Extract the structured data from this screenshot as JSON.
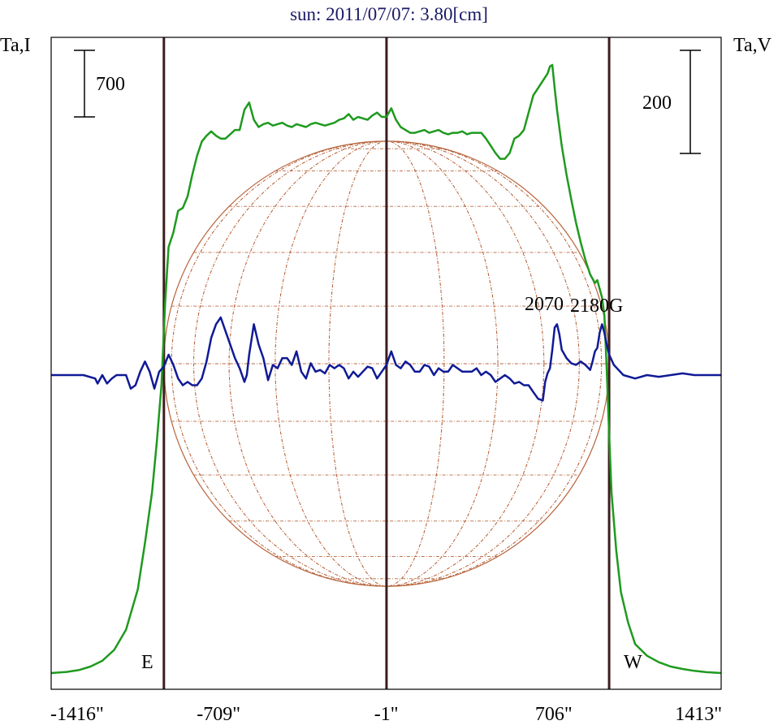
{
  "chart_data": {
    "type": "line",
    "title": "sun: 2011/07/07: 3.80[cm]",
    "left_axis_label": "Ta,I",
    "right_axis_label": "Ta,V",
    "left_scale_bar_label": "700",
    "right_scale_bar_label": "200",
    "x_ticks": [
      "-1416\"",
      "-709\"",
      "-1\"",
      "706\"",
      "1413\""
    ],
    "x_tick_values": [
      -1416,
      -709,
      -1,
      706,
      1413
    ],
    "xlim": [
      -1416,
      1413
    ],
    "limb_labels": {
      "east": "E",
      "west": "W"
    },
    "limb_positions": [
      -940,
      940
    ],
    "center_position": 0,
    "solar_radius": 940,
    "active_region_labels": [
      {
        "text": "2070",
        "x": 700
      },
      {
        "text": "2180G",
        "x": 930
      }
    ],
    "colors": {
      "intensity": "#1e9a1e",
      "polarization": "#101a96",
      "limb_lines": "#3b1d1d",
      "disk_grid": "#b8643c",
      "title": "#1a1a66",
      "frame": "#000000"
    },
    "series": [
      {
        "name": "Ta,I",
        "x": [
          -1416,
          -1350,
          -1300,
          -1250,
          -1200,
          -1150,
          -1100,
          -1050,
          -1020,
          -990,
          -970,
          -950,
          -935,
          -920,
          -900,
          -880,
          -860,
          -840,
          -820,
          -800,
          -780,
          -760,
          -740,
          -720,
          -700,
          -680,
          -660,
          -640,
          -620,
          -600,
          -580,
          -560,
          -540,
          -520,
          -500,
          -480,
          -460,
          -440,
          -420,
          -400,
          -380,
          -360,
          -340,
          -320,
          -300,
          -280,
          -260,
          -240,
          -220,
          -200,
          -180,
          -160,
          -140,
          -120,
          -100,
          -80,
          -60,
          -40,
          -20,
          0,
          20,
          40,
          60,
          80,
          100,
          120,
          140,
          160,
          180,
          200,
          220,
          240,
          260,
          280,
          300,
          320,
          340,
          360,
          380,
          400,
          420,
          440,
          460,
          480,
          500,
          520,
          540,
          560,
          580,
          600,
          620,
          640,
          660,
          680,
          690,
          700,
          710,
          720,
          740,
          760,
          780,
          800,
          820,
          840,
          860,
          880,
          890,
          900,
          910,
          920,
          930,
          940,
          950,
          970,
          990,
          1020,
          1050,
          1100,
          1150,
          1200,
          1250,
          1300,
          1350,
          1413
        ],
        "values": [
          0,
          8,
          20,
          45,
          85,
          160,
          300,
          580,
          900,
          1250,
          1600,
          2000,
          2560,
          2950,
          3050,
          3200,
          3220,
          3300,
          3450,
          3580,
          3680,
          3720,
          3750,
          3720,
          3700,
          3700,
          3730,
          3760,
          3760,
          3900,
          3950,
          3830,
          3780,
          3800,
          3810,
          3790,
          3800,
          3810,
          3790,
          3780,
          3800,
          3790,
          3780,
          3800,
          3810,
          3800,
          3790,
          3800,
          3810,
          3830,
          3840,
          3870,
          3830,
          3850,
          3840,
          3830,
          3860,
          3880,
          3850,
          3850,
          3910,
          3830,
          3780,
          3760,
          3740,
          3740,
          3750,
          3760,
          3740,
          3750,
          3760,
          3740,
          3730,
          3740,
          3740,
          3750,
          3730,
          3740,
          3740,
          3740,
          3700,
          3650,
          3600,
          3560,
          3560,
          3600,
          3700,
          3720,
          3760,
          3880,
          4000,
          4050,
          4100,
          4150,
          4200,
          4210,
          4050,
          3900,
          3650,
          3450,
          3280,
          3120,
          2980,
          2860,
          2760,
          2700,
          2720,
          2660,
          2600,
          2480,
          2100,
          1650,
          1250,
          850,
          560,
          350,
          200,
          120,
          75,
          45,
          28,
          15,
          6,
          0
        ]
      },
      {
        "name": "Ta,V",
        "x": [
          -1416,
          -1350,
          -1280,
          -1230,
          -1220,
          -1200,
          -1180,
          -1160,
          -1140,
          -1120,
          -1100,
          -1090,
          -1080,
          -1060,
          -1040,
          -1020,
          -1000,
          -980,
          -960,
          -940,
          -920,
          -900,
          -880,
          -860,
          -840,
          -820,
          -800,
          -780,
          -760,
          -740,
          -720,
          -700,
          -680,
          -660,
          -640,
          -620,
          -600,
          -590,
          -580,
          -560,
          -540,
          -520,
          -500,
          -480,
          -460,
          -440,
          -420,
          -400,
          -380,
          -360,
          -340,
          -320,
          -300,
          -280,
          -260,
          -240,
          -220,
          -200,
          -180,
          -160,
          -140,
          -120,
          -100,
          -80,
          -60,
          -40,
          -20,
          0,
          20,
          40,
          60,
          80,
          100,
          120,
          140,
          160,
          180,
          200,
          220,
          240,
          260,
          280,
          300,
          320,
          340,
          360,
          380,
          400,
          420,
          440,
          460,
          480,
          500,
          520,
          540,
          560,
          580,
          600,
          620,
          640,
          660,
          670,
          680,
          690,
          700,
          710,
          720,
          730,
          740,
          760,
          780,
          800,
          820,
          840,
          860,
          870,
          880,
          890,
          900,
          910,
          920,
          930,
          940,
          960,
          980,
          1000,
          1050,
          1100,
          1150,
          1200,
          1250,
          1300,
          1350,
          1413
        ],
        "values": [
          0,
          0,
          0,
          -2,
          -5,
          0,
          -5,
          -2,
          0,
          0,
          0,
          -4,
          -8,
          -6,
          2,
          8,
          2,
          -8,
          2,
          5,
          12,
          6,
          -2,
          -6,
          -4,
          -6,
          -6,
          -2,
          8,
          22,
          30,
          34,
          26,
          18,
          10,
          4,
          -4,
          0,
          12,
          30,
          18,
          10,
          -3,
          6,
          4,
          10,
          10,
          6,
          14,
          2,
          -2,
          7,
          2,
          3,
          1,
          6,
          4,
          6,
          4,
          -2,
          2,
          -1,
          2,
          5,
          4,
          -2,
          2,
          6,
          14,
          6,
          4,
          8,
          6,
          2,
          2,
          6,
          5,
          0,
          4,
          2,
          2,
          6,
          4,
          2,
          2,
          2,
          4,
          0,
          2,
          0,
          -4,
          -2,
          0,
          -2,
          -5,
          -4,
          -6,
          -6,
          -10,
          -14,
          -15,
          -4,
          1,
          4,
          15,
          28,
          30,
          24,
          15,
          10,
          7,
          6,
          8,
          6,
          3,
          8,
          14,
          16,
          25,
          30,
          25,
          18,
          12,
          6,
          3,
          0,
          -2,
          0,
          -1,
          0,
          1,
          0,
          0,
          0
        ]
      }
    ]
  }
}
